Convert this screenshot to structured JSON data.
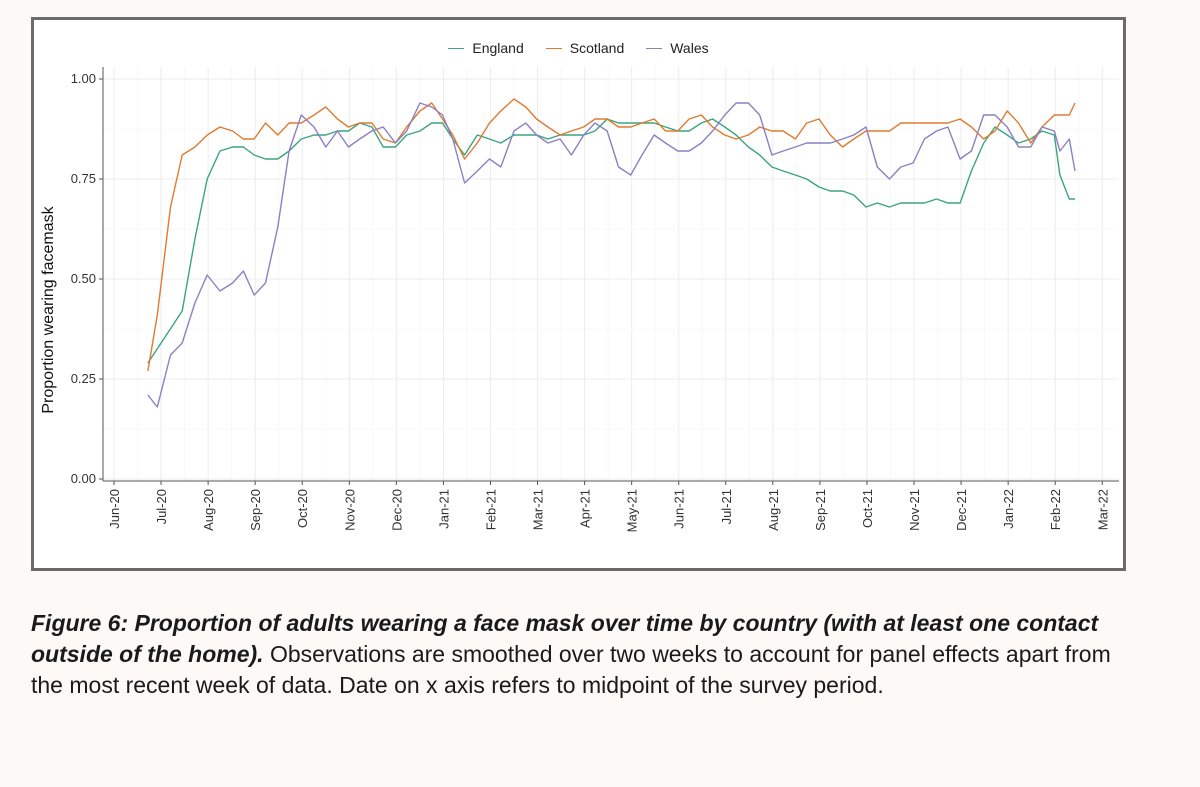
{
  "chart_data": {
    "type": "line",
    "title": "",
    "xlabel": "",
    "ylabel": "Proportion wearing facemask",
    "ylim": [
      0,
      1
    ],
    "yticks": [
      {
        "v": 0,
        "label": "0.00"
      },
      {
        "v": 0.25,
        "label": "0.25"
      },
      {
        "v": 0.5,
        "label": "0.50"
      },
      {
        "v": 0.75,
        "label": "0.75"
      },
      {
        "v": 1,
        "label": "1.00"
      }
    ],
    "xlim": [
      0,
      21
    ],
    "xticks": [
      "Jun-20",
      "Jul-20",
      "Aug-20",
      "Sep-20",
      "Oct-20",
      "Nov-20",
      "Dec-20",
      "Jan-21",
      "Feb-21",
      "Mar-21",
      "Apr-21",
      "May-21",
      "Jun-21",
      "Jul-21",
      "Aug-21",
      "Sep-21",
      "Oct-21",
      "Nov-21",
      "Dec-21",
      "Jan-22",
      "Feb-22",
      "Mar-22"
    ],
    "x_units": "months since Jun-20",
    "legend_position": "top-center",
    "series": [
      {
        "name": "England",
        "color": "#3aa57e",
        "points": [
          [
            0.72,
            0.29
          ],
          [
            1.45,
            0.42
          ],
          [
            1.72,
            0.6
          ],
          [
            1.98,
            0.75
          ],
          [
            2.25,
            0.82
          ],
          [
            2.52,
            0.83
          ],
          [
            2.75,
            0.83
          ],
          [
            2.98,
            0.81
          ],
          [
            3.22,
            0.8
          ],
          [
            3.48,
            0.8
          ],
          [
            3.72,
            0.82
          ],
          [
            3.98,
            0.85
          ],
          [
            4.25,
            0.86
          ],
          [
            4.5,
            0.86
          ],
          [
            4.75,
            0.87
          ],
          [
            4.98,
            0.87
          ],
          [
            5.22,
            0.89
          ],
          [
            5.48,
            0.88
          ],
          [
            5.72,
            0.83
          ],
          [
            5.98,
            0.83
          ],
          [
            6.22,
            0.86
          ],
          [
            6.5,
            0.87
          ],
          [
            6.75,
            0.89
          ],
          [
            6.98,
            0.89
          ],
          [
            7.2,
            0.85
          ],
          [
            7.45,
            0.81
          ],
          [
            7.72,
            0.86
          ],
          [
            7.98,
            0.85
          ],
          [
            8.22,
            0.84
          ],
          [
            8.5,
            0.86
          ],
          [
            8.75,
            0.86
          ],
          [
            8.98,
            0.86
          ],
          [
            9.22,
            0.85
          ],
          [
            9.48,
            0.86
          ],
          [
            9.72,
            0.86
          ],
          [
            9.98,
            0.86
          ],
          [
            10.22,
            0.87
          ],
          [
            10.48,
            0.9
          ],
          [
            10.72,
            0.89
          ],
          [
            10.98,
            0.89
          ],
          [
            11.22,
            0.89
          ],
          [
            11.48,
            0.89
          ],
          [
            11.72,
            0.88
          ],
          [
            11.98,
            0.87
          ],
          [
            12.22,
            0.87
          ],
          [
            12.48,
            0.89
          ],
          [
            12.72,
            0.9
          ],
          [
            12.98,
            0.88
          ],
          [
            13.22,
            0.86
          ],
          [
            13.48,
            0.83
          ],
          [
            13.72,
            0.81
          ],
          [
            13.98,
            0.78
          ],
          [
            14.22,
            0.77
          ],
          [
            14.48,
            0.76
          ],
          [
            14.72,
            0.75
          ],
          [
            14.98,
            0.73
          ],
          [
            15.22,
            0.72
          ],
          [
            15.48,
            0.72
          ],
          [
            15.72,
            0.71
          ],
          [
            15.98,
            0.68
          ],
          [
            16.22,
            0.69
          ],
          [
            16.48,
            0.68
          ],
          [
            16.72,
            0.69
          ],
          [
            16.98,
            0.69
          ],
          [
            17.22,
            0.69
          ],
          [
            17.48,
            0.7
          ],
          [
            17.72,
            0.69
          ],
          [
            17.98,
            0.69
          ],
          [
            18.22,
            0.77
          ],
          [
            18.48,
            0.84
          ],
          [
            18.72,
            0.88
          ],
          [
            18.98,
            0.86
          ],
          [
            19.22,
            0.84
          ],
          [
            19.48,
            0.85
          ],
          [
            19.72,
            0.87
          ],
          [
            19.98,
            0.86
          ],
          [
            20.1,
            0.76
          ],
          [
            20.3,
            0.7
          ],
          [
            20.42,
            0.7
          ]
        ]
      },
      {
        "name": "Scotland",
        "color": "#e07b2f",
        "points": [
          [
            0.72,
            0.27
          ],
          [
            0.92,
            0.41
          ],
          [
            1.2,
            0.68
          ],
          [
            1.45,
            0.81
          ],
          [
            1.72,
            0.83
          ],
          [
            1.98,
            0.86
          ],
          [
            2.25,
            0.88
          ],
          [
            2.52,
            0.87
          ],
          [
            2.75,
            0.85
          ],
          [
            2.98,
            0.85
          ],
          [
            3.22,
            0.89
          ],
          [
            3.48,
            0.86
          ],
          [
            3.72,
            0.89
          ],
          [
            3.98,
            0.89
          ],
          [
            4.25,
            0.91
          ],
          [
            4.5,
            0.93
          ],
          [
            4.75,
            0.9
          ],
          [
            4.98,
            0.88
          ],
          [
            5.22,
            0.89
          ],
          [
            5.48,
            0.89
          ],
          [
            5.72,
            0.85
          ],
          [
            5.98,
            0.84
          ],
          [
            6.22,
            0.88
          ],
          [
            6.5,
            0.92
          ],
          [
            6.75,
            0.94
          ],
          [
            6.98,
            0.9
          ],
          [
            7.2,
            0.86
          ],
          [
            7.45,
            0.8
          ],
          [
            7.72,
            0.84
          ],
          [
            7.98,
            0.89
          ],
          [
            8.22,
            0.92
          ],
          [
            8.5,
            0.95
          ],
          [
            8.75,
            0.93
          ],
          [
            8.98,
            0.9
          ],
          [
            9.22,
            0.88
          ],
          [
            9.48,
            0.86
          ],
          [
            9.72,
            0.87
          ],
          [
            9.98,
            0.88
          ],
          [
            10.22,
            0.9
          ],
          [
            10.48,
            0.9
          ],
          [
            10.72,
            0.88
          ],
          [
            10.98,
            0.88
          ],
          [
            11.22,
            0.89
          ],
          [
            11.48,
            0.9
          ],
          [
            11.72,
            0.87
          ],
          [
            11.98,
            0.87
          ],
          [
            12.22,
            0.9
          ],
          [
            12.48,
            0.91
          ],
          [
            12.72,
            0.88
          ],
          [
            12.98,
            0.86
          ],
          [
            13.22,
            0.85
          ],
          [
            13.48,
            0.86
          ],
          [
            13.72,
            0.88
          ],
          [
            13.98,
            0.87
          ],
          [
            14.22,
            0.87
          ],
          [
            14.48,
            0.85
          ],
          [
            14.72,
            0.89
          ],
          [
            14.98,
            0.9
          ],
          [
            15.22,
            0.86
          ],
          [
            15.48,
            0.83
          ],
          [
            15.72,
            0.85
          ],
          [
            15.98,
            0.87
          ],
          [
            16.22,
            0.87
          ],
          [
            16.48,
            0.87
          ],
          [
            16.72,
            0.89
          ],
          [
            16.98,
            0.89
          ],
          [
            17.22,
            0.89
          ],
          [
            17.48,
            0.89
          ],
          [
            17.72,
            0.89
          ],
          [
            17.98,
            0.9
          ],
          [
            18.22,
            0.88
          ],
          [
            18.48,
            0.85
          ],
          [
            18.72,
            0.87
          ],
          [
            18.98,
            0.92
          ],
          [
            19.22,
            0.89
          ],
          [
            19.48,
            0.84
          ],
          [
            19.72,
            0.88
          ],
          [
            19.98,
            0.91
          ],
          [
            20.1,
            0.91
          ],
          [
            20.3,
            0.91
          ],
          [
            20.42,
            0.94
          ]
        ]
      },
      {
        "name": "Wales",
        "color": "#8c80c4",
        "points": [
          [
            0.72,
            0.21
          ],
          [
            0.92,
            0.18
          ],
          [
            1.2,
            0.31
          ],
          [
            1.45,
            0.34
          ],
          [
            1.72,
            0.44
          ],
          [
            1.98,
            0.51
          ],
          [
            2.25,
            0.47
          ],
          [
            2.52,
            0.49
          ],
          [
            2.75,
            0.52
          ],
          [
            2.98,
            0.46
          ],
          [
            3.22,
            0.49
          ],
          [
            3.48,
            0.63
          ],
          [
            3.72,
            0.82
          ],
          [
            3.98,
            0.91
          ],
          [
            4.25,
            0.88
          ],
          [
            4.5,
            0.83
          ],
          [
            4.75,
            0.87
          ],
          [
            4.98,
            0.83
          ],
          [
            5.22,
            0.85
          ],
          [
            5.48,
            0.87
          ],
          [
            5.72,
            0.88
          ],
          [
            5.98,
            0.84
          ],
          [
            6.22,
            0.87
          ],
          [
            6.5,
            0.94
          ],
          [
            6.75,
            0.93
          ],
          [
            6.98,
            0.91
          ],
          [
            7.2,
            0.85
          ],
          [
            7.45,
            0.74
          ],
          [
            7.72,
            0.77
          ],
          [
            7.98,
            0.8
          ],
          [
            8.22,
            0.78
          ],
          [
            8.5,
            0.87
          ],
          [
            8.75,
            0.89
          ],
          [
            8.98,
            0.86
          ],
          [
            9.22,
            0.84
          ],
          [
            9.48,
            0.85
          ],
          [
            9.72,
            0.81
          ],
          [
            9.98,
            0.86
          ],
          [
            10.22,
            0.89
          ],
          [
            10.48,
            0.87
          ],
          [
            10.72,
            0.78
          ],
          [
            10.98,
            0.76
          ],
          [
            11.22,
            0.81
          ],
          [
            11.48,
            0.86
          ],
          [
            11.72,
            0.84
          ],
          [
            11.98,
            0.82
          ],
          [
            12.22,
            0.82
          ],
          [
            12.48,
            0.84
          ],
          [
            12.72,
            0.87
          ],
          [
            12.98,
            0.91
          ],
          [
            13.22,
            0.94
          ],
          [
            13.48,
            0.94
          ],
          [
            13.72,
            0.91
          ],
          [
            13.98,
            0.81
          ],
          [
            14.22,
            0.82
          ],
          [
            14.48,
            0.83
          ],
          [
            14.72,
            0.84
          ],
          [
            14.98,
            0.84
          ],
          [
            15.22,
            0.84
          ],
          [
            15.48,
            0.85
          ],
          [
            15.72,
            0.86
          ],
          [
            15.98,
            0.88
          ],
          [
            16.22,
            0.78
          ],
          [
            16.48,
            0.75
          ],
          [
            16.72,
            0.78
          ],
          [
            16.98,
            0.79
          ],
          [
            17.22,
            0.85
          ],
          [
            17.48,
            0.87
          ],
          [
            17.72,
            0.88
          ],
          [
            17.98,
            0.8
          ],
          [
            18.22,
            0.82
          ],
          [
            18.48,
            0.91
          ],
          [
            18.72,
            0.91
          ],
          [
            18.98,
            0.88
          ],
          [
            19.22,
            0.83
          ],
          [
            19.48,
            0.83
          ],
          [
            19.72,
            0.88
          ],
          [
            19.98,
            0.87
          ],
          [
            20.1,
            0.82
          ],
          [
            20.3,
            0.85
          ],
          [
            20.42,
            0.77
          ]
        ]
      }
    ]
  },
  "caption": {
    "bold": "Figure 6: Proportion of adults wearing a face mask over time by country (with at least one contact outside of the home).",
    "text": " Observations are smoothed over two weeks to account for panel effects apart from the most recent week of data. Date on x axis refers to midpoint of the survey period."
  }
}
